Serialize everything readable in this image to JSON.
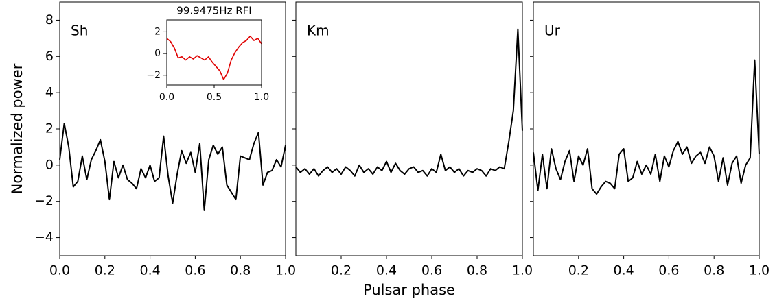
{
  "chart_data": [
    {
      "type": "line",
      "label": "Sh",
      "ylabel": "Normalized power",
      "x": [
        0,
        0.02,
        0.04,
        0.06,
        0.08,
        0.1,
        0.12,
        0.14,
        0.16,
        0.18,
        0.2,
        0.22,
        0.24,
        0.26,
        0.28,
        0.3,
        0.32,
        0.34,
        0.36,
        0.38,
        0.4,
        0.42,
        0.44,
        0.46,
        0.48,
        0.5,
        0.52,
        0.54,
        0.56,
        0.58,
        0.6,
        0.62,
        0.64,
        0.66,
        0.68,
        0.7,
        0.72,
        0.74,
        0.76,
        0.78,
        0.8,
        0.82,
        0.84,
        0.86,
        0.88,
        0.9,
        0.92,
        0.94,
        0.96,
        0.98,
        1.0
      ],
      "series": [
        {
          "color": "#000000",
          "values": [
            0.3,
            2.3,
            1.0,
            -1.2,
            -0.9,
            0.5,
            -0.8,
            0.3,
            0.8,
            1.4,
            0.2,
            -1.9,
            0.2,
            -0.7,
            0.0,
            -0.8,
            -1.0,
            -1.3,
            -0.2,
            -0.7,
            0.0,
            -0.9,
            -0.7,
            1.6,
            -0.6,
            -2.1,
            -0.5,
            0.8,
            0.1,
            0.7,
            -0.4,
            1.2,
            -2.5,
            0.3,
            1.1,
            0.6,
            1.0,
            -1.1,
            -1.5,
            -1.9,
            0.5,
            0.4,
            0.3,
            1.2,
            1.8,
            -1.1,
            -0.4,
            -0.3,
            0.3,
            -0.1,
            1.1
          ]
        }
      ],
      "xlim": [
        0,
        1
      ],
      "ylim": [
        -5,
        9
      ],
      "xticks": [
        {
          "value": 0,
          "label": "0.0"
        },
        {
          "value": 0.2,
          "label": "0.2"
        },
        {
          "value": 0.4,
          "label": "0.4"
        },
        {
          "value": 0.6,
          "label": "0.6"
        },
        {
          "value": 0.8,
          "label": "0.8"
        },
        {
          "value": 1,
          "label": "1.0"
        }
      ],
      "yticks": [
        {
          "value": -4,
          "label": "−4"
        },
        {
          "value": -2,
          "label": "−2"
        },
        0,
        2,
        4,
        6,
        8
      ]
    },
    {
      "type": "line",
      "label": "Km",
      "xlabel": "Pulsar phase",
      "x": [
        0,
        0.02,
        0.04,
        0.06,
        0.08,
        0.1,
        0.12,
        0.14,
        0.16,
        0.18,
        0.2,
        0.22,
        0.24,
        0.26,
        0.28,
        0.3,
        0.32,
        0.34,
        0.36,
        0.38,
        0.4,
        0.42,
        0.44,
        0.46,
        0.48,
        0.5,
        0.52,
        0.54,
        0.56,
        0.58,
        0.6,
        0.62,
        0.64,
        0.66,
        0.68,
        0.7,
        0.72,
        0.74,
        0.76,
        0.78,
        0.8,
        0.82,
        0.84,
        0.86,
        0.88,
        0.9,
        0.92,
        0.94,
        0.96,
        0.98,
        1.0
      ],
      "series": [
        {
          "color": "#000000",
          "values": [
            -0.1,
            -0.4,
            -0.2,
            -0.5,
            -0.2,
            -0.6,
            -0.3,
            -0.1,
            -0.4,
            -0.2,
            -0.5,
            -0.1,
            -0.3,
            -0.6,
            0.0,
            -0.4,
            -0.2,
            -0.5,
            -0.1,
            -0.3,
            0.2,
            -0.4,
            0.1,
            -0.3,
            -0.5,
            -0.2,
            -0.1,
            -0.4,
            -0.3,
            -0.6,
            -0.2,
            -0.4,
            0.6,
            -0.3,
            -0.1,
            -0.4,
            -0.2,
            -0.6,
            -0.3,
            -0.4,
            -0.2,
            -0.3,
            -0.6,
            -0.2,
            -0.3,
            -0.1,
            -0.2,
            1.3,
            3.0,
            7.5,
            1.9
          ]
        }
      ],
      "xlim": [
        0,
        1
      ],
      "ylim": [
        -5,
        9
      ],
      "xticks": [
        {
          "value": 0.2,
          "label": "0.2"
        },
        {
          "value": 0.4,
          "label": "0.4"
        },
        {
          "value": 0.6,
          "label": "0.6"
        },
        {
          "value": 0.8,
          "label": "0.8"
        },
        {
          "value": 1,
          "label": "1.0"
        }
      ],
      "yticks": [
        -4,
        -2,
        0,
        2,
        4,
        6,
        8
      ]
    },
    {
      "type": "line",
      "label": "Ur",
      "x": [
        0,
        0.02,
        0.04,
        0.06,
        0.08,
        0.1,
        0.12,
        0.14,
        0.16,
        0.18,
        0.2,
        0.22,
        0.24,
        0.26,
        0.28,
        0.3,
        0.32,
        0.34,
        0.36,
        0.38,
        0.4,
        0.42,
        0.44,
        0.46,
        0.48,
        0.5,
        0.52,
        0.54,
        0.56,
        0.58,
        0.6,
        0.62,
        0.64,
        0.66,
        0.68,
        0.7,
        0.72,
        0.74,
        0.76,
        0.78,
        0.8,
        0.82,
        0.84,
        0.86,
        0.88,
        0.9,
        0.92,
        0.94,
        0.96,
        0.98,
        1.0
      ],
      "series": [
        {
          "color": "#000000",
          "values": [
            0.7,
            -1.4,
            0.6,
            -1.3,
            0.9,
            -0.2,
            -0.8,
            0.2,
            0.8,
            -0.9,
            0.5,
            0.0,
            0.9,
            -1.3,
            -1.6,
            -1.2,
            -0.9,
            -1.0,
            -1.3,
            0.6,
            0.9,
            -0.9,
            -0.7,
            0.2,
            -0.5,
            0.0,
            -0.5,
            0.6,
            -0.9,
            0.5,
            -0.1,
            0.8,
            1.3,
            0.6,
            1.0,
            0.1,
            0.5,
            0.7,
            0.1,
            1.0,
            0.5,
            -0.9,
            0.4,
            -1.1,
            0.1,
            0.5,
            -1.0,
            0.0,
            0.4,
            5.8,
            0.6
          ]
        }
      ],
      "xlim": [
        0,
        1
      ],
      "ylim": [
        -5,
        9
      ],
      "xticks": [
        {
          "value": 0.2,
          "label": "0.2"
        },
        {
          "value": 0.4,
          "label": "0.4"
        },
        {
          "value": 0.6,
          "label": "0.6"
        },
        {
          "value": 0.8,
          "label": "0.8"
        },
        {
          "value": 1,
          "label": "1.0"
        }
      ],
      "yticks": [
        -4,
        -2,
        0,
        2,
        4,
        6,
        8
      ]
    },
    {
      "type": "line",
      "title": "99.9475Hz RFI",
      "x": [
        0,
        0.04,
        0.08,
        0.12,
        0.16,
        0.2,
        0.24,
        0.28,
        0.32,
        0.36,
        0.4,
        0.44,
        0.48,
        0.52,
        0.56,
        0.6,
        0.64,
        0.68,
        0.72,
        0.76,
        0.8,
        0.84,
        0.88,
        0.92,
        0.96,
        1.0
      ],
      "series": [
        {
          "color": "#e00000",
          "values": [
            1.4,
            1.1,
            0.5,
            -0.4,
            -0.3,
            -0.6,
            -0.3,
            -0.5,
            -0.2,
            -0.4,
            -0.6,
            -0.3,
            -0.8,
            -1.2,
            -1.6,
            -2.4,
            -1.8,
            -0.6,
            0.1,
            0.6,
            1.0,
            1.2,
            1.6,
            1.2,
            1.4,
            0.9
          ]
        }
      ],
      "xlim": [
        0,
        1
      ],
      "ylim": [
        -2.9,
        3.1
      ],
      "xticks": [
        {
          "value": 0,
          "label": "0.0"
        },
        {
          "value": 0.5,
          "label": "0.5"
        },
        {
          "value": 1,
          "label": "1.0"
        }
      ],
      "yticks": [
        {
          "value": -2,
          "label": "−2"
        },
        0,
        2
      ]
    }
  ]
}
